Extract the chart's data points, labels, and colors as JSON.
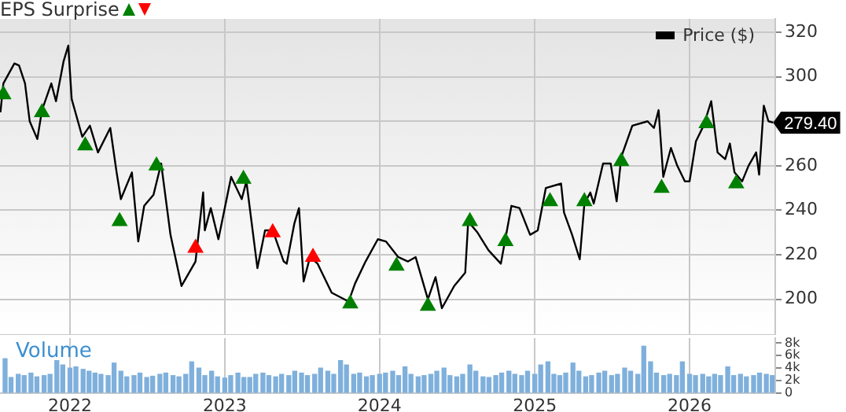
{
  "chart_data": [
    {
      "type": "line",
      "legend": "top right",
      "legend_title": "EPS Surprise",
      "grid": true,
      "tick_labels": "y",
      "xlim": [
        "2021-07-20",
        "2026-07-22"
      ],
      "xticks": [
        "2022",
        "2023",
        "2024",
        "2025",
        "2026"
      ],
      "ylim": [
        184,
        326
      ],
      "yticks": [
        200,
        220,
        240,
        260,
        {
          "value": 280,
          "label": null
        },
        300,
        320
      ],
      "annotations": [
        {
          "text": "279.40",
          "x": "2026-07-17",
          "y": 279.4
        }
      ],
      "series": [
        {
          "name": "Price ($)",
          "type": "line",
          "color": "#000000",
          "marker": "none",
          "x": [
            "2021-07-21",
            "2021-07-28",
            "2021-08-23",
            "2021-09-03",
            "2021-09-17",
            "2021-09-28",
            "2021-10-16",
            "2021-10-27",
            "2021-11-18",
            "2021-11-29",
            "2021-12-17",
            "2021-12-28",
            "2022-01-05",
            "2022-01-30",
            "2022-02-17",
            "2022-03-08",
            "2022-04-06",
            "2022-04-21",
            "2022-05-01",
            "2022-05-27",
            "2022-06-11",
            "2022-06-25",
            "2022-07-17",
            "2022-08-04",
            "2022-08-26",
            "2022-09-21",
            "2022-10-24",
            "2022-11-11",
            "2022-11-15",
            "2022-11-29",
            "2022-12-17",
            "2023-01-16",
            "2023-02-10",
            "2023-02-21",
            "2023-03-19",
            "2023-04-06",
            "2023-04-24",
            "2023-05-20",
            "2023-05-27",
            "2023-06-14",
            "2023-06-25",
            "2023-07-06",
            "2023-07-21",
            "2023-08-08",
            "2023-09-10",
            "2023-10-20",
            "2023-11-04",
            "2023-11-29",
            "2023-12-28",
            "2024-01-16",
            "2024-02-14",
            "2024-03-08",
            "2024-03-26",
            "2024-04-24",
            "2024-05-12",
            "2024-05-27",
            "2024-06-25",
            "2024-07-21",
            "2024-07-28",
            "2024-08-19",
            "2024-09-14",
            "2024-10-13",
            "2024-11-07",
            "2024-11-26",
            "2024-12-21",
            "2025-01-08",
            "2025-01-27",
            "2025-03-04",
            "2025-03-11",
            "2025-03-30",
            "2025-04-17",
            "2025-04-28",
            "2025-05-12",
            "2025-05-20",
            "2025-06-11",
            "2025-06-29",
            "2025-07-13",
            "2025-07-24",
            "2025-08-19",
            "2025-09-24",
            "2025-10-09",
            "2025-10-20",
            "2025-10-31",
            "2025-11-18",
            "2025-12-03",
            "2025-12-21",
            "2026-01-01",
            "2026-01-16",
            "2026-02-03",
            "2026-02-21",
            "2026-03-08",
            "2026-03-26",
            "2026-04-06",
            "2026-04-17",
            "2026-05-05",
            "2026-05-20",
            "2026-06-07",
            "2026-06-14",
            "2026-06-25",
            "2026-07-06",
            "2026-07-17"
          ],
          "values": [
            284,
            297,
            306,
            305,
            297,
            280,
            272,
            285,
            297,
            289,
            307,
            314,
            290,
            273,
            278,
            266,
            277,
            257,
            245,
            257,
            226,
            242,
            247,
            261,
            229,
            206,
            217,
            248,
            231,
            241,
            227,
            255,
            245,
            253,
            214,
            231,
            231,
            217,
            216,
            234,
            241,
            208,
            219,
            216,
            203,
            199,
            207,
            217,
            227,
            226,
            219,
            217,
            219,
            200,
            210,
            196,
            206,
            212,
            235,
            230,
            222,
            216,
            242,
            241,
            229,
            231,
            250,
            252,
            239,
            229,
            218,
            243,
            248,
            243,
            261,
            261,
            244,
            264,
            278,
            280,
            277,
            285,
            255,
            268,
            260,
            253,
            253,
            271,
            278,
            289,
            266,
            263,
            270,
            257,
            253,
            260,
            266,
            256,
            287,
            280,
            279.4
          ]
        },
        {
          "type": "scatter",
          "color": "#008000",
          "marker": "triangle",
          "x": [
            "2021-07-28",
            "2021-10-27",
            "2022-02-06",
            "2022-04-28",
            "2022-07-24",
            "2023-02-14",
            "2023-10-24",
            "2024-02-10",
            "2024-04-24",
            "2024-08-01",
            "2024-10-24",
            "2025-02-06",
            "2025-04-28",
            "2025-07-24",
            "2025-10-27",
            "2026-02-10",
            "2026-04-21"
          ],
          "values": [
            292,
            284,
            269,
            235,
            260,
            254,
            198,
            215,
            197,
            235,
            226,
            244,
            244,
            262,
            250,
            279,
            252
          ]
        },
        {
          "type": "scatter",
          "color": "#ff0000",
          "marker": "triangle",
          "x": [
            "2022-10-24",
            "2023-04-24",
            "2023-07-28"
          ],
          "values": [
            223,
            230,
            219
          ]
        }
      ]
    },
    {
      "type": "bar",
      "title": "Volume",
      "grid": "x",
      "color": "#7fb0dc",
      "xlim": [
        "2021-07-20",
        "2026-07-22"
      ],
      "xticks": [
        "2022",
        "2023",
        "2024",
        "2025",
        "2026"
      ],
      "ylim": [
        0,
        8800
      ],
      "yticks": [
        0,
        {
          "value": 2000,
          "label": "2k"
        },
        {
          "value": 4000,
          "label": "4k"
        },
        {
          "value": 6000,
          "label": "6k"
        },
        {
          "value": 8000,
          "label": "8k"
        }
      ],
      "x": [
        "2021-08-01",
        "2021-08-15",
        "2021-09-01",
        "2021-09-15",
        "2021-10-01",
        "2021-10-15",
        "2021-11-01",
        "2021-11-15",
        "2021-12-01",
        "2021-12-15",
        "2022-01-01",
        "2022-01-15",
        "2022-02-01",
        "2022-02-15",
        "2022-03-01",
        "2022-03-15",
        "2022-04-01",
        "2022-04-15",
        "2022-05-01",
        "2022-05-15",
        "2022-06-01",
        "2022-06-15",
        "2022-07-01",
        "2022-07-15",
        "2022-08-01",
        "2022-08-15",
        "2022-09-01",
        "2022-09-15",
        "2022-10-01",
        "2022-10-15",
        "2022-11-01",
        "2022-11-15",
        "2022-12-01",
        "2022-12-15",
        "2023-01-01",
        "2023-01-15",
        "2023-02-01",
        "2023-02-15",
        "2023-03-01",
        "2023-03-15",
        "2023-04-01",
        "2023-04-15",
        "2023-05-01",
        "2023-05-15",
        "2023-06-01",
        "2023-06-15",
        "2023-07-01",
        "2023-07-15",
        "2023-08-01",
        "2023-08-15",
        "2023-09-01",
        "2023-09-15",
        "2023-10-01",
        "2023-10-15",
        "2023-11-01",
        "2023-11-15",
        "2023-12-01",
        "2023-12-15",
        "2024-01-01",
        "2024-01-15",
        "2024-02-01",
        "2024-02-15",
        "2024-03-01",
        "2024-03-15",
        "2024-04-01",
        "2024-04-15",
        "2024-05-01",
        "2024-05-15",
        "2024-06-01",
        "2024-06-15",
        "2024-07-01",
        "2024-07-15",
        "2024-08-01",
        "2024-08-15",
        "2024-09-01",
        "2024-09-15",
        "2024-10-01",
        "2024-10-15",
        "2024-11-01",
        "2024-11-15",
        "2024-12-01",
        "2024-12-15",
        "2025-01-01",
        "2025-01-15",
        "2025-02-01",
        "2025-02-15",
        "2025-03-01",
        "2025-03-15",
        "2025-04-01",
        "2025-04-15",
        "2025-05-01",
        "2025-05-15",
        "2025-06-01",
        "2025-06-15",
        "2025-07-01",
        "2025-07-15",
        "2025-08-01",
        "2025-08-15",
        "2025-09-01",
        "2025-09-15",
        "2025-10-01",
        "2025-10-15",
        "2025-11-01",
        "2025-11-15",
        "2025-12-01",
        "2025-12-15",
        "2026-01-01",
        "2026-01-15",
        "2026-02-01",
        "2026-02-15",
        "2026-03-01",
        "2026-03-15",
        "2026-04-01",
        "2026-04-15",
        "2026-05-01",
        "2026-05-15",
        "2026-06-01",
        "2026-06-15",
        "2026-07-01",
        "2026-07-15"
      ],
      "values": [
        5500,
        2500,
        3000,
        2800,
        3200,
        2600,
        2800,
        3000,
        5200,
        4500,
        4000,
        4200,
        3800,
        3500,
        3200,
        3000,
        2800,
        4800,
        3500,
        2600,
        2800,
        3200,
        2500,
        2700,
        3000,
        3200,
        2800,
        2600,
        3000,
        5000,
        4000,
        2800,
        3500,
        2600,
        2400,
        2800,
        3200,
        2500,
        2500,
        3000,
        3200,
        2800,
        2600,
        3000,
        2800,
        3500,
        3200,
        2800,
        3000,
        4000,
        3500,
        3000,
        5200,
        4500,
        3000,
        3200,
        2600,
        2800,
        3000,
        3200,
        3500,
        2800,
        4200,
        3000,
        2600,
        2800,
        3000,
        3500,
        4000,
        2800,
        2600,
        3000,
        4500,
        3500,
        2600,
        2500,
        2800,
        3200,
        3500,
        3000,
        2800,
        3500,
        3000,
        4500,
        5000,
        3000,
        2800,
        3200,
        4800,
        3500,
        2600,
        2800,
        3200,
        3500,
        2800,
        3000,
        4000,
        3500,
        3000,
        7500,
        5000,
        3200,
        2800,
        3000,
        2800,
        5000,
        3000,
        2800,
        3000,
        2600,
        3000,
        2800,
        4200,
        2800,
        3000,
        2600,
        2800,
        3200,
        3000,
        2800
      ]
    }
  ]
}
